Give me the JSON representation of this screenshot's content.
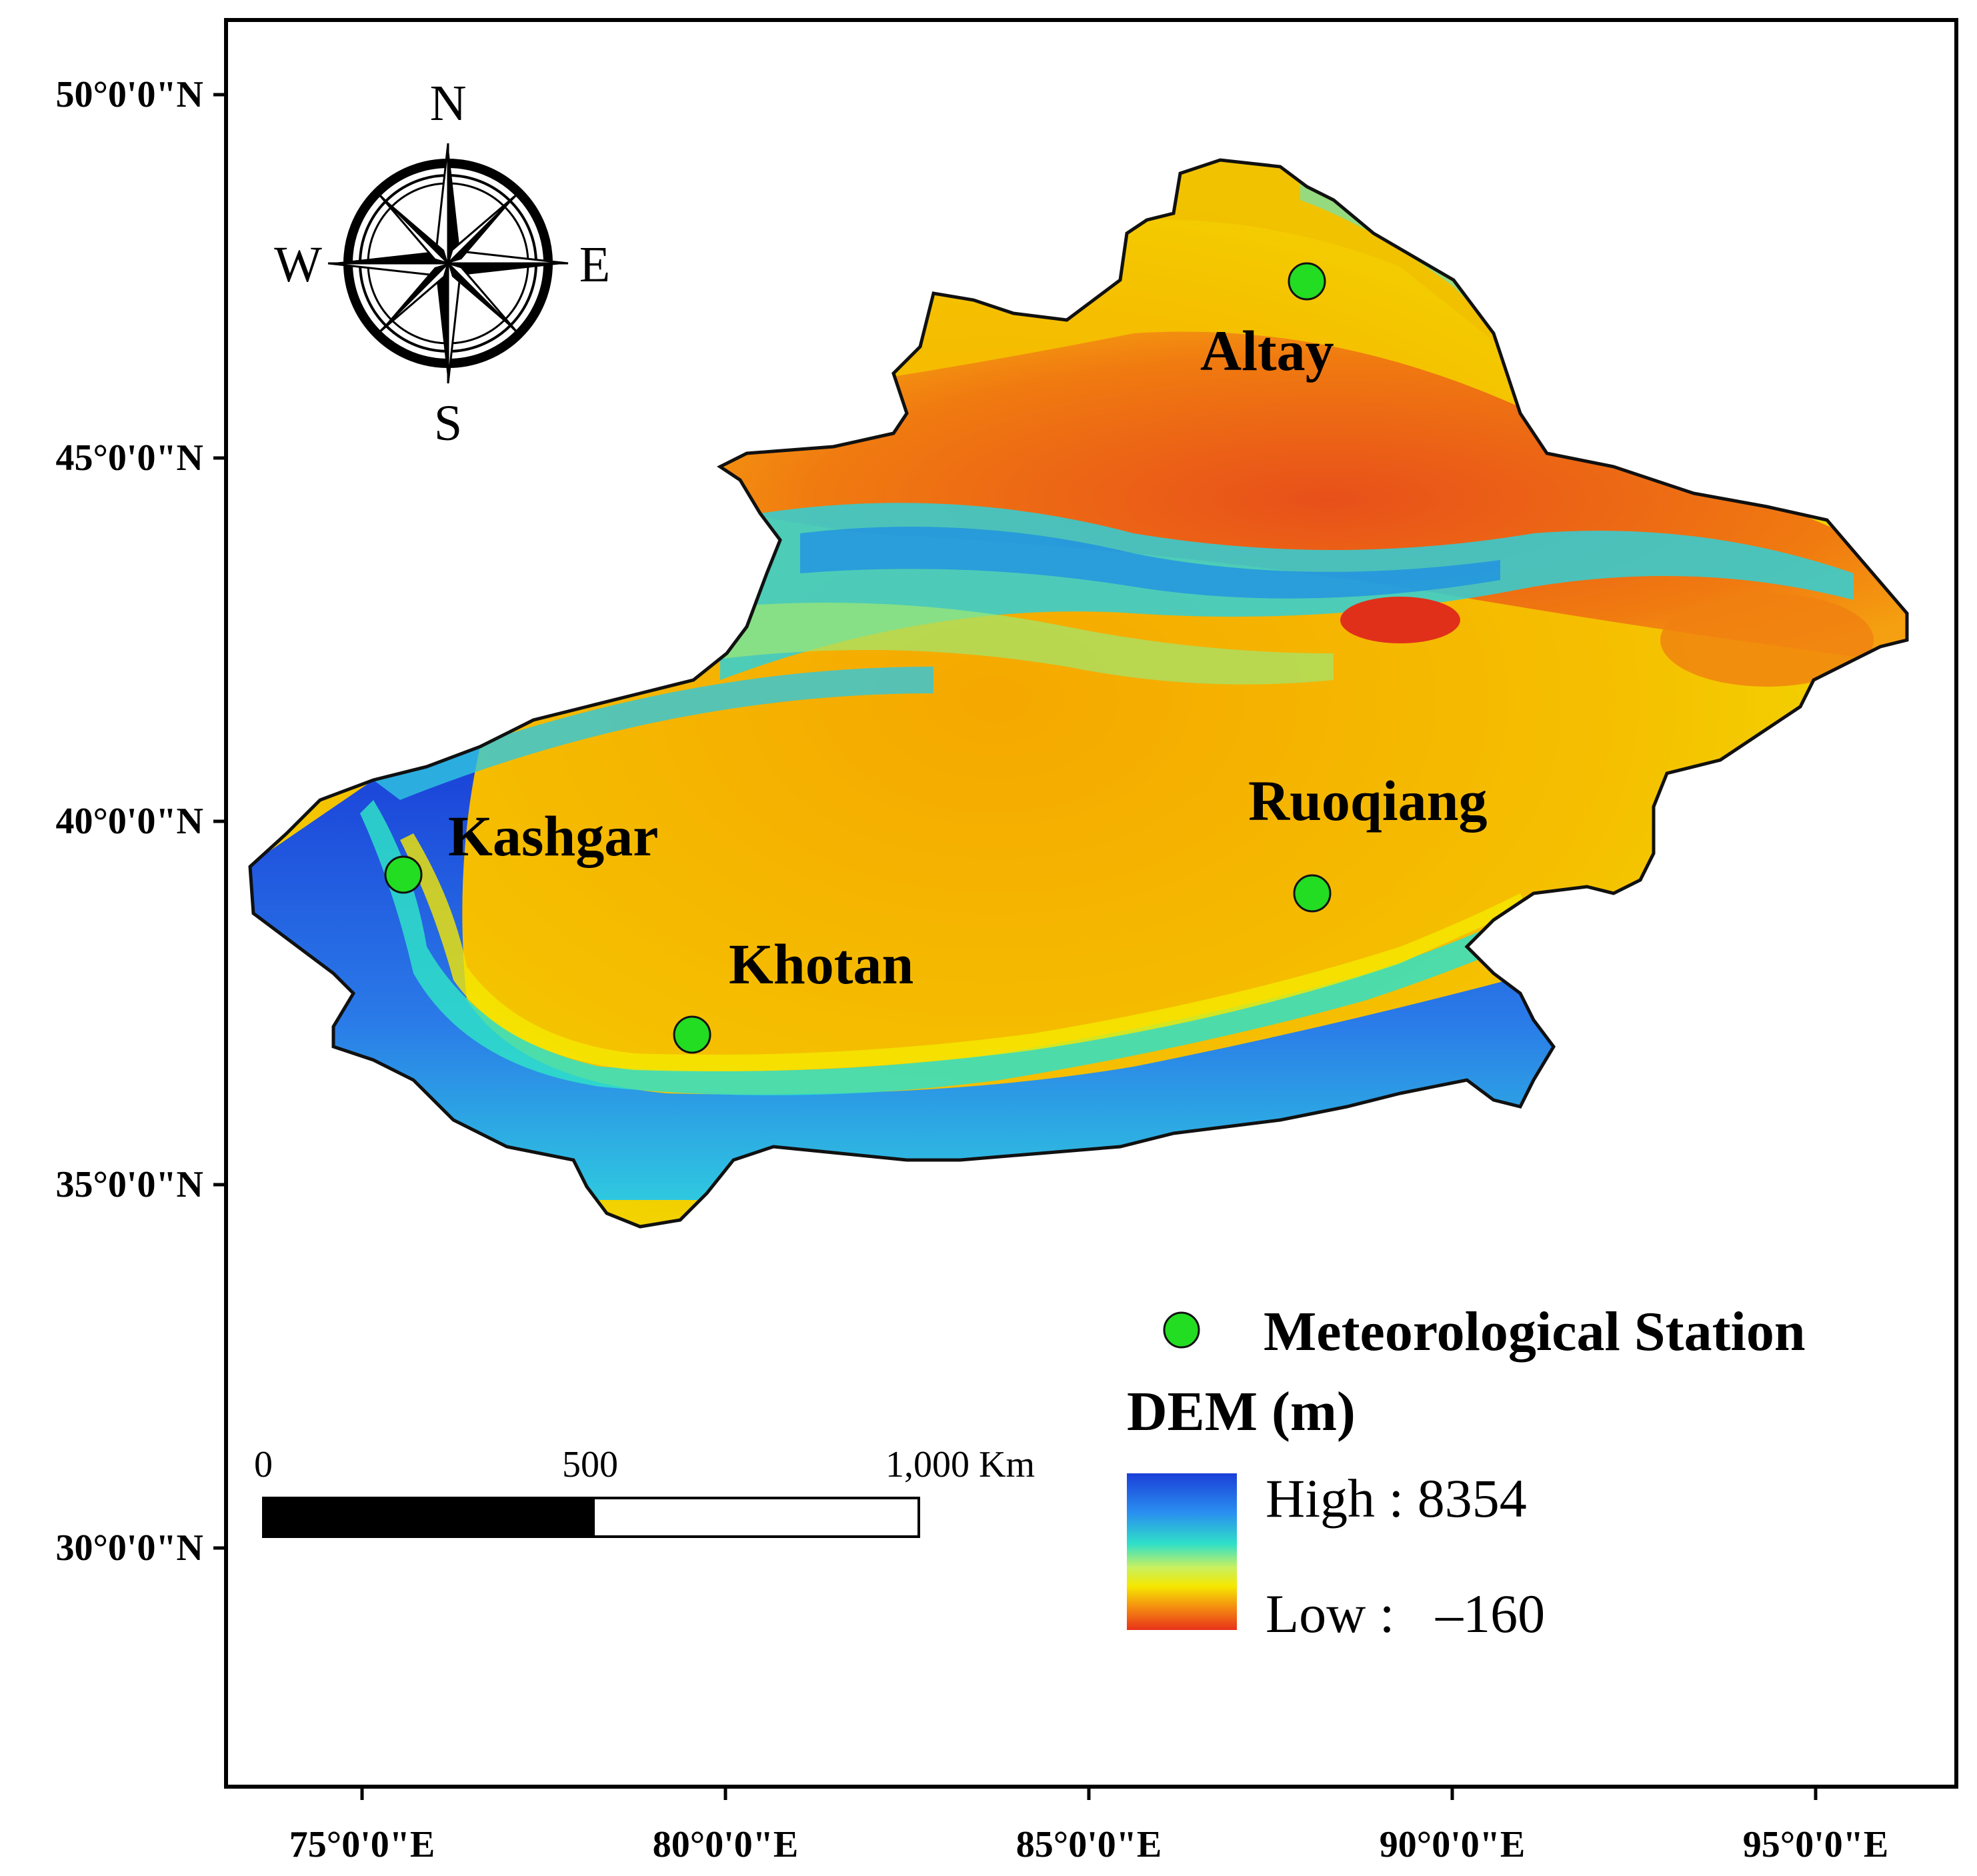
{
  "map": {
    "lat_labels": [
      "50°0'0\"N",
      "45°0'0\"N",
      "40°0'0\"N",
      "35°0'0\"N",
      "30°0'0\"N"
    ],
    "lon_labels": [
      "75°0'0\"E",
      "80°0'0\"E",
      "85°0'0\"E",
      "90°0'0\"E",
      "95°0'0\"E"
    ],
    "compass": {
      "n": "N",
      "s": "S",
      "e": "E",
      "w": "W"
    },
    "stations": [
      {
        "name": "Altay"
      },
      {
        "name": "Kashgar"
      },
      {
        "name": "Khotan"
      },
      {
        "name": "Ruoqiang"
      }
    ],
    "scale_bar": {
      "label_0": "0",
      "label_mid": "500",
      "label_end": "1,000 Km"
    },
    "legend": {
      "station_label": "Meteorological Station",
      "dem_title": "DEM (m)",
      "high_label": "High : 8354",
      "low_label": "Low :   –160"
    }
  },
  "colors": {
    "station": "#22dd22",
    "dem_high": "#1a3fd8",
    "dem_mid": "#2fe0c8",
    "dem_yellow": "#f5e800",
    "dem_low": "#e8321a"
  }
}
